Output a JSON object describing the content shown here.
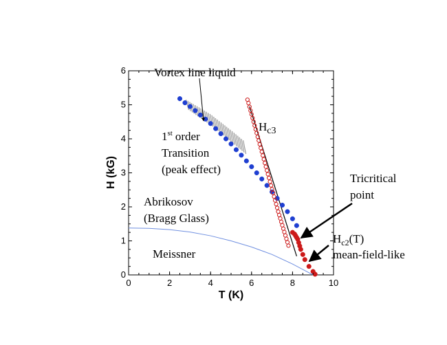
{
  "chart_data": {
    "type": "scatter",
    "xlabel": "T (K)",
    "ylabel": "H (kG)",
    "xlim": [
      0,
      10
    ],
    "ylim": [
      0,
      6
    ],
    "x_ticks": [
      "0",
      "2",
      "4",
      "6",
      "8",
      "10"
    ],
    "y_ticks": [
      "0",
      "1",
      "2",
      "3",
      "4",
      "5",
      "6"
    ],
    "grid": false,
    "colors": {
      "blue_points": "#1f3fd1",
      "red_points": "#cc1a1a",
      "meissner_line": "#6f8fe0",
      "hatch": "#9a9a9a",
      "fit_line": "#000000"
    },
    "series": [
      {
        "marker": "filled-circle",
        "color": "blue",
        "x": [
          2.5,
          2.75,
          3.0,
          3.25,
          3.5,
          3.75,
          4.0,
          4.25,
          4.5,
          4.75,
          5.0,
          5.25,
          5.5,
          5.75,
          6.0,
          6.25,
          6.5,
          6.75,
          7.0,
          7.25,
          7.5,
          7.75,
          8.0,
          8.2
        ],
        "y": [
          5.18,
          5.06,
          4.95,
          4.83,
          4.7,
          4.58,
          4.45,
          4.3,
          4.15,
          4.0,
          3.85,
          3.68,
          3.52,
          3.35,
          3.18,
          3.0,
          2.82,
          2.63,
          2.44,
          2.25,
          2.05,
          1.86,
          1.65,
          1.45
        ]
      },
      {
        "marker": "open-circle",
        "color": "red",
        "x": [
          5.8,
          5.85,
          5.9,
          5.95,
          6.0,
          6.05,
          6.1,
          6.15,
          6.2,
          6.25,
          6.3,
          6.35,
          6.4,
          6.45,
          6.5,
          6.55,
          6.6,
          6.65,
          6.7,
          6.75,
          6.8,
          6.85,
          6.9,
          6.95,
          7.0,
          7.05,
          7.1,
          7.15,
          7.2,
          7.25,
          7.3,
          7.35,
          7.4,
          7.45,
          7.5,
          7.55,
          7.6,
          7.65,
          7.7,
          7.75,
          7.8
        ],
        "y": [
          5.15,
          5.05,
          4.94,
          4.83,
          4.72,
          4.61,
          4.5,
          4.39,
          4.28,
          4.17,
          4.06,
          3.95,
          3.84,
          3.73,
          3.62,
          3.51,
          3.4,
          3.29,
          3.18,
          3.07,
          2.96,
          2.85,
          2.74,
          2.63,
          2.52,
          2.41,
          2.3,
          2.19,
          2.08,
          1.97,
          1.86,
          1.76,
          1.66,
          1.56,
          1.46,
          1.36,
          1.26,
          1.16,
          1.06,
          0.96,
          0.86
        ]
      },
      {
        "marker": "filled-circle",
        "color": "red",
        "x": [
          8.0,
          8.1,
          8.15,
          8.2,
          8.25,
          8.3,
          8.35,
          8.4,
          8.5,
          8.6,
          8.8,
          9.0,
          9.1
        ],
        "y": [
          1.25,
          1.2,
          1.15,
          1.1,
          1.05,
          0.95,
          0.85,
          0.75,
          0.6,
          0.45,
          0.25,
          0.1,
          0.02
        ]
      },
      {
        "marker": "line",
        "color": "light-blue",
        "x": [
          0,
          1,
          2,
          3,
          4,
          5,
          6,
          7,
          8,
          8.5,
          9.0
        ],
        "y": [
          1.38,
          1.37,
          1.33,
          1.26,
          1.15,
          1.0,
          0.82,
          0.6,
          0.32,
          0.16,
          0.0
        ]
      },
      {
        "marker": "line",
        "color": "black",
        "x": [
          5.9,
          8.2
        ],
        "y": [
          4.95,
          0.55
        ]
      }
    ],
    "hatch_band": {
      "upper": {
        "x": [
          2.8,
          4.0,
          5.0,
          5.6
        ],
        "y": [
          5.15,
          4.72,
          4.25,
          3.95
        ]
      },
      "lower": {
        "x": [
          2.8,
          4.0,
          5.0,
          5.6
        ],
        "y": [
          4.85,
          4.35,
          3.85,
          3.55
        ]
      }
    },
    "annotations": {
      "vortex": "Vortex line liquid",
      "first_sup": "st",
      "first_num": "1",
      "first_order": "order",
      "transition": "Transition",
      "peak": "(peak effect)",
      "abrikosov": "Abrikosov",
      "bragg": "(Bragg Glass)",
      "meissner": "Meissner",
      "hc3_main": "H",
      "hc3_sub": "c3",
      "tricritical_1": "Tricritical",
      "tricritical_2": "point",
      "hc2_main": "H",
      "hc2_sub": "c2",
      "hc2_rest": "(T)",
      "hc2_line2": "mean-field-like"
    }
  }
}
